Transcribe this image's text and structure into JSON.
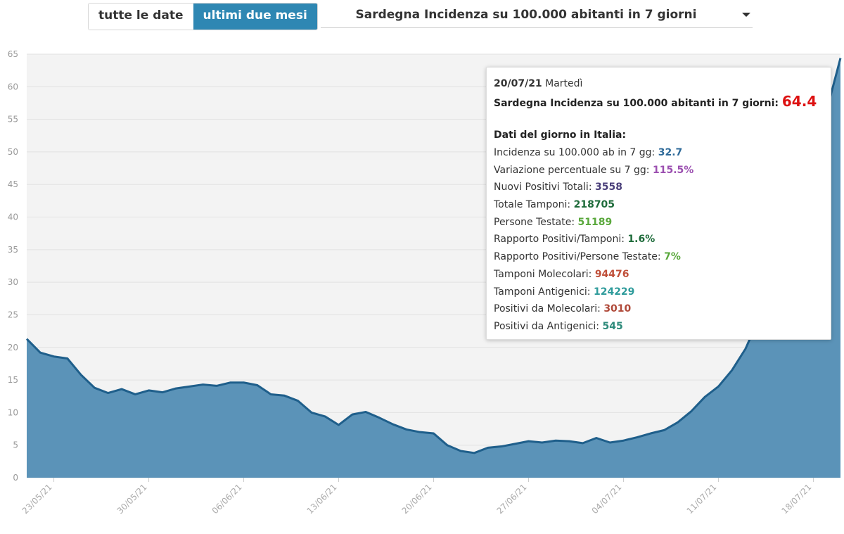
{
  "controls": {
    "all_dates_label": "tutte le date",
    "last_two_months_label": "ultimi due mesi",
    "metric_select_label": "Sardegna Incidenza su 100.000 abitanti in 7 giorni"
  },
  "tooltip": {
    "date": "20/07/21",
    "weekday": "Martedì",
    "metric_label": "Sardegna Incidenza su 100.000 abitanti in 7 giorni:",
    "metric_value": "64.4",
    "italy_title": "Dati del giorno in Italia:",
    "rows": [
      {
        "label": "Incidenza su 100.000 ab in 7 gg:",
        "value": "32.7",
        "color": "#2e6a99"
      },
      {
        "label": "Variazione percentuale su 7 gg:",
        "value": "115.5%",
        "color": "#9b4fb0"
      },
      {
        "label": "Nuovi Positivi Totali:",
        "value": "3558",
        "color": "#4a3f7a"
      },
      {
        "label": "Totale Tamponi:",
        "value": "218705",
        "color": "#1e6b3a"
      },
      {
        "label": "Persone Testate:",
        "value": "51189",
        "color": "#5aa83c"
      },
      {
        "label": "Rapporto Positivi/Tamponi:",
        "value": "1.6%",
        "color": "#1e6b3a"
      },
      {
        "label": "Rapporto Positivi/Persone Testate:",
        "value": "7%",
        "color": "#5aa83c"
      },
      {
        "label": "Tamponi Molecolari:",
        "value": "94476",
        "color": "#c0503a"
      },
      {
        "label": "Tamponi Antigenici:",
        "value": "124229",
        "color": "#2e9b9b"
      },
      {
        "label": "Positivi da Molecolari:",
        "value": "3010",
        "color": "#b04a3a"
      },
      {
        "label": "Positivi da Antigenici:",
        "value": "545",
        "color": "#2e8b7b"
      }
    ]
  },
  "chart_data": {
    "type": "area",
    "title": "Sardegna Incidenza su 100.000 abitanti in 7 giorni",
    "ylim": [
      0,
      65
    ],
    "yticks": [
      0,
      5,
      10,
      15,
      20,
      25,
      30,
      35,
      40,
      45,
      50,
      55,
      60,
      65
    ],
    "xtick_labels": [
      "23/05/21",
      "30/05/21",
      "06/06/21",
      "13/06/21",
      "20/06/21",
      "27/06/21",
      "04/07/21",
      "11/07/21",
      "18/07/21"
    ],
    "grid": true,
    "fill_color": "#5b93b8",
    "line_color": "#1f5f8b",
    "series": [
      {
        "x": [
          "21/05/21",
          "22/05/21",
          "23/05/21",
          "24/05/21",
          "25/05/21",
          "26/05/21",
          "27/05/21",
          "28/05/21",
          "29/05/21",
          "30/05/21",
          "31/05/21",
          "01/06/21",
          "02/06/21",
          "03/06/21",
          "04/06/21",
          "05/06/21",
          "06/06/21",
          "07/06/21",
          "08/06/21",
          "09/06/21",
          "10/06/21",
          "11/06/21",
          "12/06/21",
          "13/06/21",
          "14/06/21",
          "15/06/21",
          "16/06/21",
          "17/06/21",
          "18/06/21",
          "19/06/21",
          "20/06/21",
          "21/06/21",
          "22/06/21",
          "23/06/21",
          "24/06/21",
          "25/06/21",
          "26/06/21",
          "27/06/21",
          "28/06/21",
          "29/06/21",
          "30/06/21",
          "01/07/21",
          "02/07/21",
          "03/07/21",
          "04/07/21",
          "05/07/21",
          "06/07/21",
          "07/07/21",
          "08/07/21",
          "09/07/21",
          "10/07/21",
          "11/07/21",
          "12/07/21",
          "13/07/21",
          "14/07/21",
          "15/07/21",
          "16/07/21",
          "17/07/21",
          "18/07/21",
          "19/07/21",
          "20/07/21"
        ],
        "values": [
          21.3,
          19.2,
          18.6,
          18.3,
          15.8,
          13.8,
          13.0,
          13.6,
          12.8,
          13.4,
          13.1,
          13.7,
          14.0,
          14.3,
          14.1,
          14.6,
          14.6,
          14.2,
          12.8,
          12.6,
          11.8,
          10.0,
          9.4,
          8.1,
          9.7,
          10.1,
          9.2,
          8.2,
          7.4,
          7.0,
          6.8,
          5.0,
          4.1,
          3.8,
          4.6,
          4.8,
          5.2,
          5.6,
          5.4,
          5.7,
          5.6,
          5.3,
          6.1,
          5.4,
          5.7,
          6.2,
          6.8,
          7.3,
          8.5,
          10.2,
          12.4,
          14.0,
          16.5,
          19.8,
          24.5,
          29.0,
          34.5,
          41.0,
          49.0,
          56.5,
          64.4
        ]
      }
    ]
  }
}
